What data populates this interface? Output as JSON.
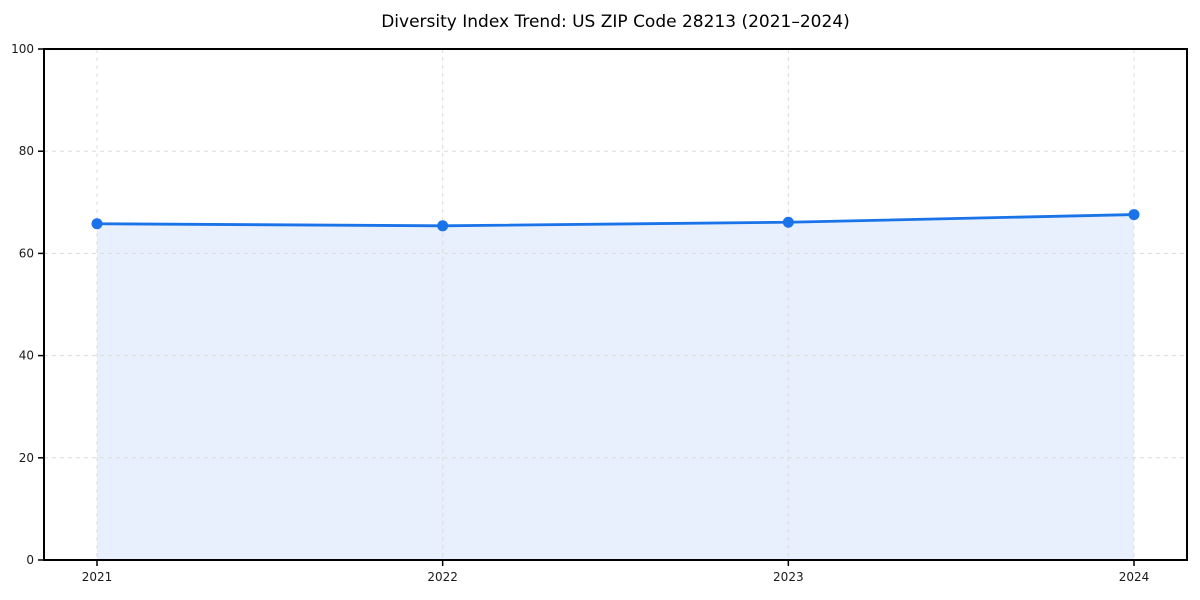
{
  "chart_data": {
    "type": "area",
    "title": "Diversity Index Trend: US ZIP Code 28213 (2021–2024)",
    "categories": [
      "2021",
      "2022",
      "2023",
      "2024"
    ],
    "series": [
      {
        "name": "Diversity Index",
        "values": [
          65.8,
          65.4,
          66.1,
          67.6
        ]
      }
    ],
    "xlabel": "",
    "ylabel": "",
    "ylim": [
      0,
      100
    ],
    "yticks": [
      0,
      20,
      40,
      60,
      80,
      100
    ],
    "grid": true,
    "grid_style": "dashed",
    "legend_position": "none",
    "colors": {
      "line": "#1a73e8",
      "marker": "#1a73e8",
      "fill": "#e7f0fc",
      "grid": "#dcdcdc",
      "spine": "#000000",
      "tick": "#000000",
      "tick_label": "#1a1a1a",
      "title": "#000000",
      "background": "#ffffff"
    }
  }
}
